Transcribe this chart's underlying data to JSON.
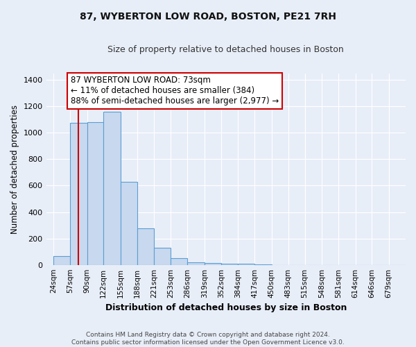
{
  "title": "87, WYBERTON LOW ROAD, BOSTON, PE21 7RH",
  "subtitle": "Size of property relative to detached houses in Boston",
  "xlabel": "Distribution of detached houses by size in Boston",
  "ylabel": "Number of detached properties",
  "bin_labels": [
    "24sqm",
    "57sqm",
    "90sqm",
    "122sqm",
    "155sqm",
    "188sqm",
    "221sqm",
    "253sqm",
    "286sqm",
    "319sqm",
    "352sqm",
    "384sqm",
    "417sqm",
    "450sqm",
    "483sqm",
    "515sqm",
    "548sqm",
    "581sqm",
    "614sqm",
    "646sqm",
    "679sqm"
  ],
  "bin_edges": [
    24,
    57,
    90,
    122,
    155,
    188,
    221,
    253,
    286,
    319,
    352,
    384,
    417,
    450,
    483,
    515,
    548,
    581,
    614,
    646,
    679,
    712
  ],
  "bar_heights": [
    65,
    1075,
    1080,
    1160,
    630,
    275,
    130,
    50,
    20,
    15,
    10,
    10,
    5,
    0,
    0,
    0,
    0,
    0,
    0,
    0,
    0
  ],
  "bar_color": "#c8d8ee",
  "bar_edgecolor": "#5a9fd4",
  "property_size": 73,
  "vline_color": "#cc0000",
  "annotation_line1": "87 WYBERTON LOW ROAD: 73sqm",
  "annotation_line2": "← 11% of detached houses are smaller (384)",
  "annotation_line3": "88% of semi-detached houses are larger (2,977) →",
  "annotation_box_color": "#ffffff",
  "annotation_box_edgecolor": "#cc0000",
  "ylim": [
    0,
    1450
  ],
  "xlim_left": 10,
  "xlim_right": 712,
  "background_color": "#e8eef8",
  "grid_color": "#ffffff",
  "yticks": [
    0,
    200,
    400,
    600,
    800,
    1000,
    1200,
    1400
  ],
  "footer_text": "Contains HM Land Registry data © Crown copyright and database right 2024.\nContains public sector information licensed under the Open Government Licence v3.0."
}
